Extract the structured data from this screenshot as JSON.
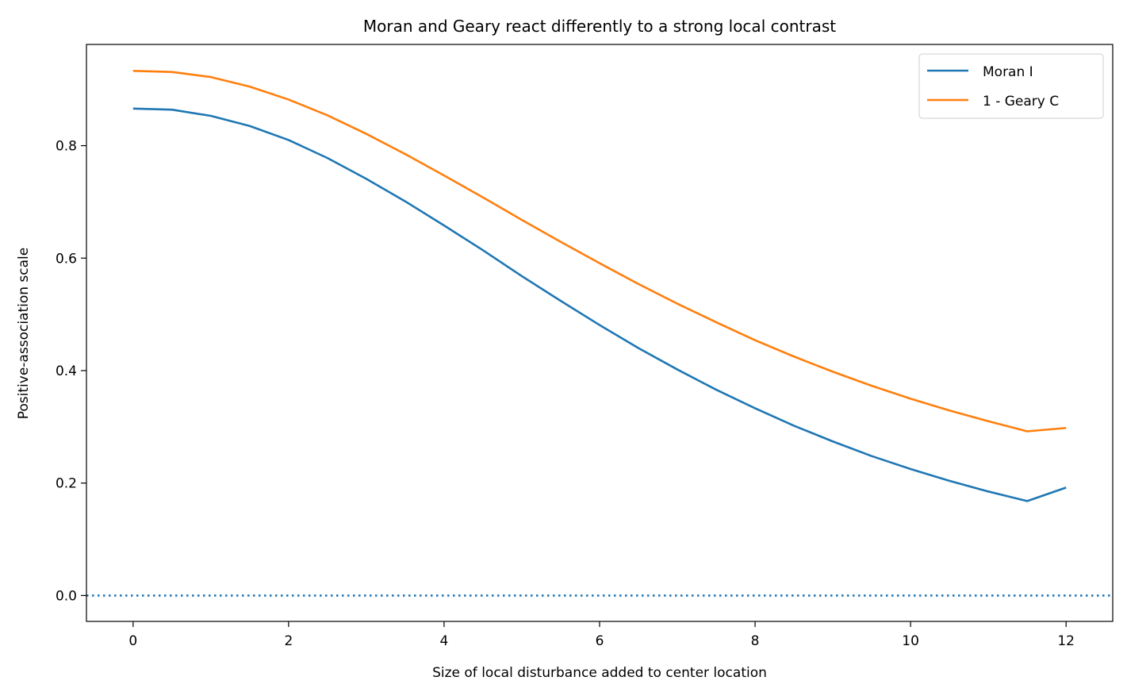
{
  "chart_data": {
    "type": "line",
    "title": "Moran and Geary react differently to a strong local contrast",
    "xlabel": "Size of local disturbance added to center location",
    "ylabel": "Positive-association scale",
    "xlim": [
      -0.6,
      12.6
    ],
    "ylim": [
      -0.046,
      0.98
    ],
    "xticks": [
      0,
      2,
      4,
      6,
      8,
      10,
      12
    ],
    "xtick_labels": [
      "0",
      "2",
      "4",
      "6",
      "8",
      "10",
      "12"
    ],
    "yticks": [
      0.0,
      0.2,
      0.4,
      0.6,
      0.8
    ],
    "ytick_labels": [
      "0.0",
      "0.2",
      "0.4",
      "0.6",
      "0.8"
    ],
    "grid": false,
    "legend_position": "top-right",
    "reference_line": {
      "y": 0.0,
      "style": "dotted",
      "color": "#1f77b4"
    },
    "x": [
      0,
      0.5,
      1,
      1.5,
      2,
      2.5,
      3,
      3.5,
      4,
      4.5,
      5,
      5.5,
      6,
      6.5,
      7,
      7.5,
      8,
      8.5,
      9,
      9.5,
      10,
      10.5,
      11,
      11.5,
      12
    ],
    "series": [
      {
        "name": "Moran I",
        "color": "#1f77b4",
        "values": [
          0.866,
          0.864,
          0.853,
          0.835,
          0.81,
          0.778,
          0.741,
          0.701,
          0.658,
          0.614,
          0.568,
          0.524,
          0.481,
          0.44,
          0.402,
          0.366,
          0.333,
          0.302,
          0.274,
          0.248,
          0.225,
          0.204,
          0.185,
          0.168,
          0.192
        ]
      },
      {
        "name": "1 - Geary C",
        "color": "#ff7f0e",
        "values": [
          0.933,
          0.931,
          0.922,
          0.905,
          0.882,
          0.854,
          0.821,
          0.785,
          0.747,
          0.708,
          0.668,
          0.629,
          0.591,
          0.554,
          0.519,
          0.486,
          0.454,
          0.425,
          0.398,
          0.373,
          0.35,
          0.329,
          0.31,
          0.292,
          0.298
        ]
      }
    ]
  }
}
